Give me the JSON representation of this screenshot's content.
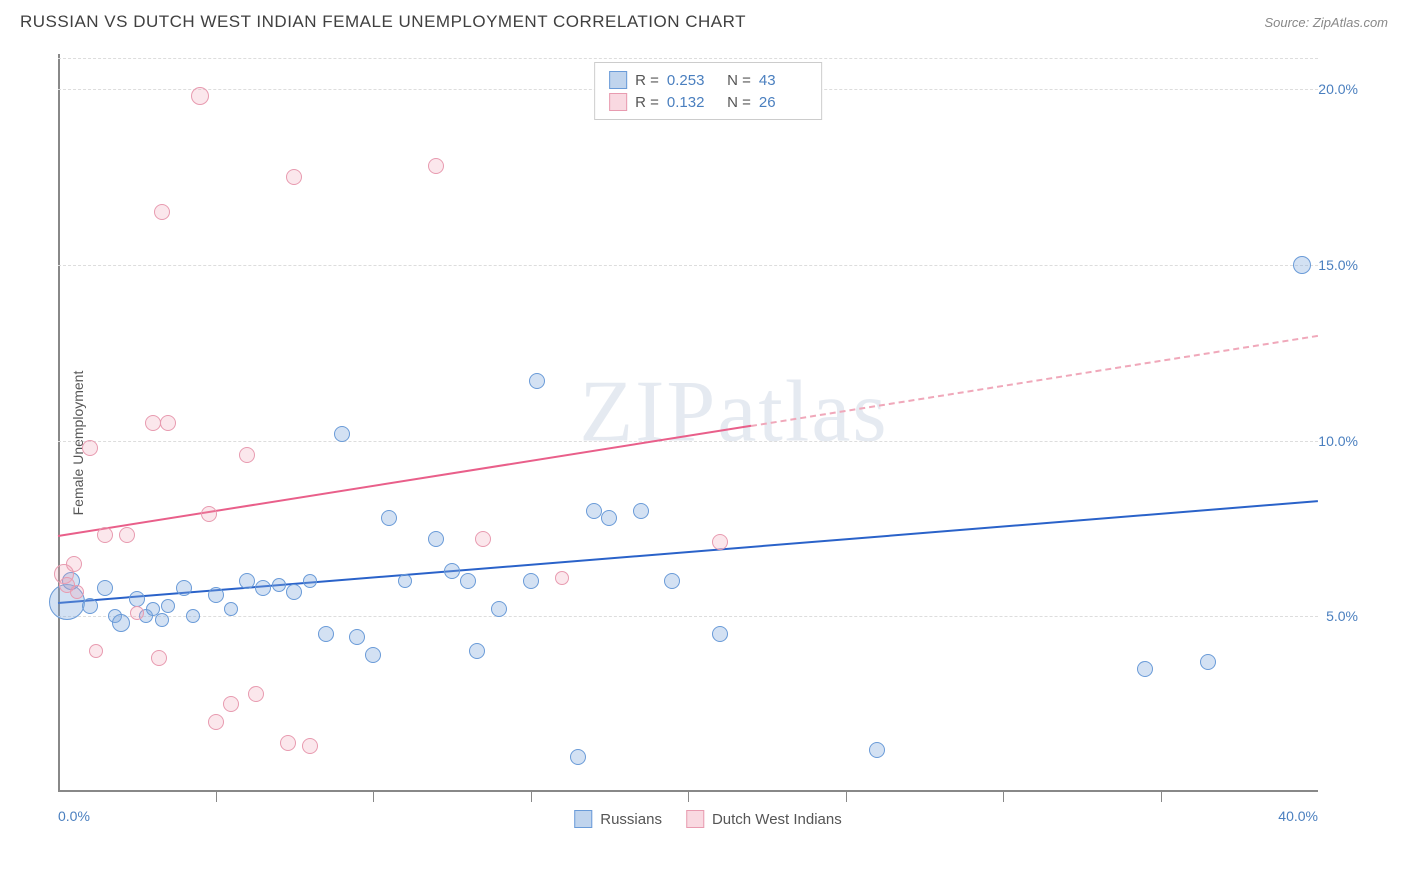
{
  "header": {
    "title": "RUSSIAN VS DUTCH WEST INDIAN FEMALE UNEMPLOYMENT CORRELATION CHART",
    "source": "Source: ZipAtlas.com"
  },
  "chart": {
    "type": "scatter",
    "y_axis_label": "Female Unemployment",
    "watermark": "ZIPatlas",
    "xlim": [
      0,
      40
    ],
    "ylim": [
      0,
      21
    ],
    "x_ticks_major": [
      0,
      40
    ],
    "x_ticks_minor": [
      5,
      10,
      15,
      20,
      25,
      30,
      35
    ],
    "x_tick_labels": {
      "0": "0.0%",
      "40": "40.0%"
    },
    "y_gridlines": [
      5,
      10,
      15,
      20
    ],
    "y_tick_labels": {
      "5": "5.0%",
      "10": "10.0%",
      "15": "15.0%",
      "20": "20.0%"
    },
    "colors": {
      "blue_fill": "rgba(130,170,220,0.35)",
      "blue_stroke": "#6a9bd8",
      "blue_line": "#2a62c9",
      "pink_fill": "rgba(240,160,180,0.25)",
      "pink_stroke": "#e89bb0",
      "pink_line": "#e95f8a",
      "pink_dash": "#f0a8ba",
      "grid": "#dddddd",
      "axis": "#888888",
      "tick_text": "#4a7fbf"
    },
    "series": [
      {
        "name": "Russians",
        "color_key": "blue",
        "R": "0.253",
        "N": "43",
        "trend": {
          "x1": 0,
          "y1": 5.4,
          "x2": 40,
          "y2": 8.3,
          "dashed_from": null
        },
        "points": [
          {
            "x": 0.3,
            "y": 5.4,
            "r": 18
          },
          {
            "x": 0.4,
            "y": 6.0,
            "r": 9
          },
          {
            "x": 1.0,
            "y": 5.3,
            "r": 8
          },
          {
            "x": 1.5,
            "y": 5.8,
            "r": 8
          },
          {
            "x": 1.8,
            "y": 5.0,
            "r": 7
          },
          {
            "x": 2.0,
            "y": 4.8,
            "r": 9
          },
          {
            "x": 2.5,
            "y": 5.5,
            "r": 8
          },
          {
            "x": 2.8,
            "y": 5.0,
            "r": 7
          },
          {
            "x": 3.0,
            "y": 5.2,
            "r": 7
          },
          {
            "x": 3.3,
            "y": 4.9,
            "r": 7
          },
          {
            "x": 3.5,
            "y": 5.3,
            "r": 7
          },
          {
            "x": 4.0,
            "y": 5.8,
            "r": 8
          },
          {
            "x": 4.3,
            "y": 5.0,
            "r": 7
          },
          {
            "x": 5.0,
            "y": 5.6,
            "r": 8
          },
          {
            "x": 5.5,
            "y": 5.2,
            "r": 7
          },
          {
            "x": 6.0,
            "y": 6.0,
            "r": 8
          },
          {
            "x": 6.5,
            "y": 5.8,
            "r": 8
          },
          {
            "x": 7.0,
            "y": 5.9,
            "r": 7
          },
          {
            "x": 7.5,
            "y": 5.7,
            "r": 8
          },
          {
            "x": 8.0,
            "y": 6.0,
            "r": 7
          },
          {
            "x": 8.5,
            "y": 4.5,
            "r": 8
          },
          {
            "x": 9.0,
            "y": 10.2,
            "r": 8
          },
          {
            "x": 9.5,
            "y": 4.4,
            "r": 8
          },
          {
            "x": 10.0,
            "y": 3.9,
            "r": 8
          },
          {
            "x": 10.5,
            "y": 7.8,
            "r": 8
          },
          {
            "x": 11.0,
            "y": 6.0,
            "r": 7
          },
          {
            "x": 12.0,
            "y": 7.2,
            "r": 8
          },
          {
            "x": 12.5,
            "y": 6.3,
            "r": 8
          },
          {
            "x": 13.0,
            "y": 6.0,
            "r": 8
          },
          {
            "x": 13.3,
            "y": 4.0,
            "r": 8
          },
          {
            "x": 14.0,
            "y": 5.2,
            "r": 8
          },
          {
            "x": 15.0,
            "y": 6.0,
            "r": 8
          },
          {
            "x": 15.2,
            "y": 11.7,
            "r": 8
          },
          {
            "x": 16.5,
            "y": 1.0,
            "r": 8
          },
          {
            "x": 17.0,
            "y": 8.0,
            "r": 8
          },
          {
            "x": 17.5,
            "y": 7.8,
            "r": 8
          },
          {
            "x": 18.5,
            "y": 8.0,
            "r": 8
          },
          {
            "x": 19.5,
            "y": 6.0,
            "r": 8
          },
          {
            "x": 21.0,
            "y": 4.5,
            "r": 8
          },
          {
            "x": 26.0,
            "y": 1.2,
            "r": 8
          },
          {
            "x": 34.5,
            "y": 3.5,
            "r": 8
          },
          {
            "x": 36.5,
            "y": 3.7,
            "r": 8
          },
          {
            "x": 39.5,
            "y": 15.0,
            "r": 9
          }
        ]
      },
      {
        "name": "Dutch West Indians",
        "color_key": "pink",
        "R": "0.132",
        "N": "26",
        "trend": {
          "x1": 0,
          "y1": 7.3,
          "x2": 40,
          "y2": 13.0,
          "dashed_from": 22
        },
        "points": [
          {
            "x": 0.2,
            "y": 6.2,
            "r": 10
          },
          {
            "x": 0.3,
            "y": 5.9,
            "r": 8
          },
          {
            "x": 0.5,
            "y": 6.5,
            "r": 8
          },
          {
            "x": 0.6,
            "y": 5.7,
            "r": 7
          },
          {
            "x": 1.0,
            "y": 9.8,
            "r": 8
          },
          {
            "x": 1.2,
            "y": 4.0,
            "r": 7
          },
          {
            "x": 1.5,
            "y": 7.3,
            "r": 8
          },
          {
            "x": 2.2,
            "y": 7.3,
            "r": 8
          },
          {
            "x": 2.5,
            "y": 5.1,
            "r": 7
          },
          {
            "x": 3.0,
            "y": 10.5,
            "r": 8
          },
          {
            "x": 3.2,
            "y": 3.8,
            "r": 8
          },
          {
            "x": 3.3,
            "y": 16.5,
            "r": 8
          },
          {
            "x": 3.5,
            "y": 10.5,
            "r": 8
          },
          {
            "x": 4.5,
            "y": 19.8,
            "r": 9
          },
          {
            "x": 4.8,
            "y": 7.9,
            "r": 8
          },
          {
            "x": 5.0,
            "y": 2.0,
            "r": 8
          },
          {
            "x": 5.5,
            "y": 2.5,
            "r": 8
          },
          {
            "x": 6.0,
            "y": 9.6,
            "r": 8
          },
          {
            "x": 6.3,
            "y": 2.8,
            "r": 8
          },
          {
            "x": 7.3,
            "y": 1.4,
            "r": 8
          },
          {
            "x": 7.5,
            "y": 17.5,
            "r": 8
          },
          {
            "x": 8.0,
            "y": 1.3,
            "r": 8
          },
          {
            "x": 12.0,
            "y": 17.8,
            "r": 8
          },
          {
            "x": 13.5,
            "y": 7.2,
            "r": 8
          },
          {
            "x": 16.0,
            "y": 6.1,
            "r": 7
          },
          {
            "x": 21.0,
            "y": 7.1,
            "r": 8
          }
        ]
      }
    ],
    "bottom_legend": [
      {
        "color": "blue",
        "label": "Russians"
      },
      {
        "color": "pink",
        "label": "Dutch West Indians"
      }
    ]
  }
}
